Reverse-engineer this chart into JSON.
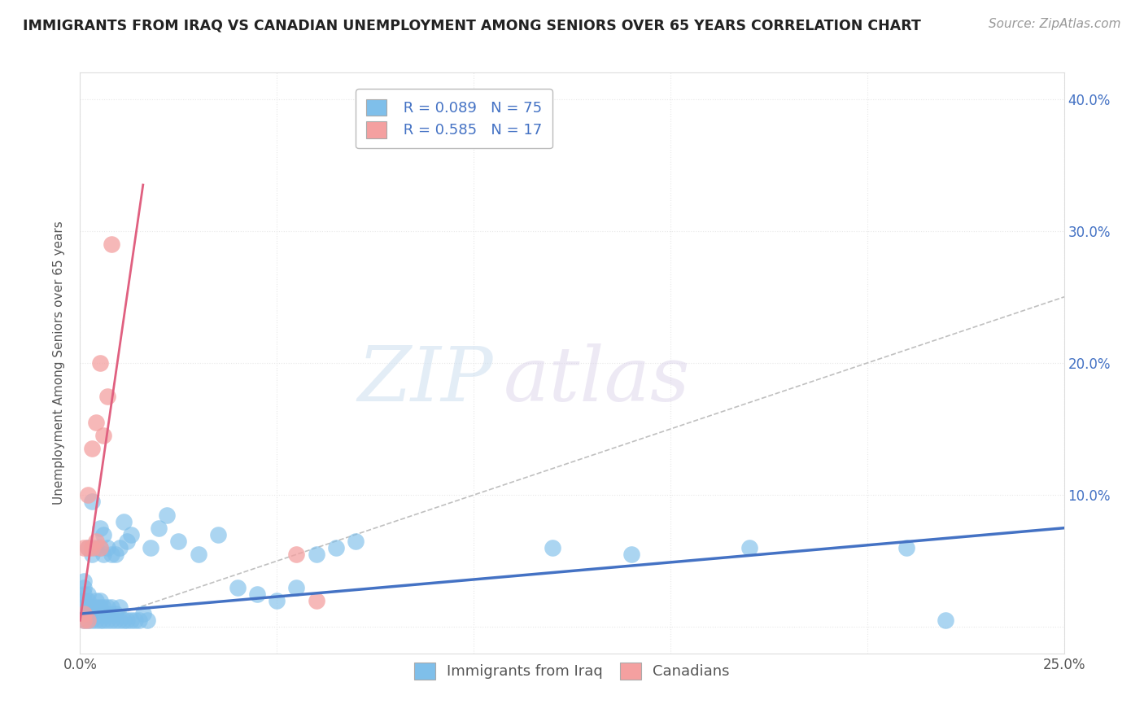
{
  "title": "IMMIGRANTS FROM IRAQ VS CANADIAN UNEMPLOYMENT AMONG SENIORS OVER 65 YEARS CORRELATION CHART",
  "source": "Source: ZipAtlas.com",
  "ylabel_label": "Unemployment Among Seniors over 65 years",
  "legend_r1": "R = 0.089",
  "legend_n1": "N = 75",
  "legend_r2": "R = 0.585",
  "legend_n2": "N = 17",
  "blue_color": "#7fbfea",
  "pink_color": "#f4a0a0",
  "blue_line_color": "#4472c4",
  "pink_line_color": "#e06080",
  "diag_line_color": "#c0c0c0",
  "xlim": [
    0.0,
    0.25
  ],
  "ylim": [
    -0.02,
    0.42
  ],
  "blue_scatter_x": [
    0.001,
    0.001,
    0.001,
    0.001,
    0.001,
    0.001,
    0.001,
    0.002,
    0.002,
    0.002,
    0.002,
    0.002,
    0.002,
    0.003,
    0.003,
    0.003,
    0.003,
    0.003,
    0.004,
    0.004,
    0.004,
    0.004,
    0.004,
    0.005,
    0.005,
    0.005,
    0.005,
    0.005,
    0.005,
    0.006,
    0.006,
    0.006,
    0.006,
    0.006,
    0.007,
    0.007,
    0.007,
    0.007,
    0.008,
    0.008,
    0.008,
    0.009,
    0.009,
    0.009,
    0.01,
    0.01,
    0.01,
    0.011,
    0.011,
    0.012,
    0.012,
    0.013,
    0.013,
    0.014,
    0.015,
    0.016,
    0.017,
    0.018,
    0.02,
    0.022,
    0.025,
    0.03,
    0.035,
    0.04,
    0.045,
    0.05,
    0.055,
    0.06,
    0.065,
    0.07,
    0.12,
    0.14,
    0.17,
    0.21,
    0.22
  ],
  "blue_scatter_y": [
    0.005,
    0.01,
    0.015,
    0.02,
    0.025,
    0.03,
    0.035,
    0.005,
    0.01,
    0.015,
    0.02,
    0.025,
    0.06,
    0.005,
    0.01,
    0.015,
    0.055,
    0.095,
    0.005,
    0.01,
    0.015,
    0.02,
    0.06,
    0.005,
    0.01,
    0.015,
    0.02,
    0.06,
    0.075,
    0.005,
    0.01,
    0.015,
    0.055,
    0.07,
    0.005,
    0.01,
    0.015,
    0.06,
    0.005,
    0.015,
    0.055,
    0.005,
    0.01,
    0.055,
    0.005,
    0.015,
    0.06,
    0.005,
    0.08,
    0.005,
    0.065,
    0.005,
    0.07,
    0.005,
    0.005,
    0.01,
    0.005,
    0.06,
    0.075,
    0.085,
    0.065,
    0.055,
    0.07,
    0.03,
    0.025,
    0.02,
    0.03,
    0.055,
    0.06,
    0.065,
    0.06,
    0.055,
    0.06,
    0.06,
    0.005
  ],
  "pink_scatter_x": [
    0.001,
    0.001,
    0.001,
    0.002,
    0.002,
    0.002,
    0.003,
    0.003,
    0.004,
    0.004,
    0.005,
    0.005,
    0.006,
    0.007,
    0.008,
    0.055,
    0.06
  ],
  "pink_scatter_y": [
    0.005,
    0.01,
    0.06,
    0.005,
    0.06,
    0.1,
    0.06,
    0.135,
    0.065,
    0.155,
    0.06,
    0.2,
    0.145,
    0.175,
    0.29,
    0.055,
    0.02
  ],
  "bg_color": "#ffffff",
  "grid_color": "#e8e8e8"
}
